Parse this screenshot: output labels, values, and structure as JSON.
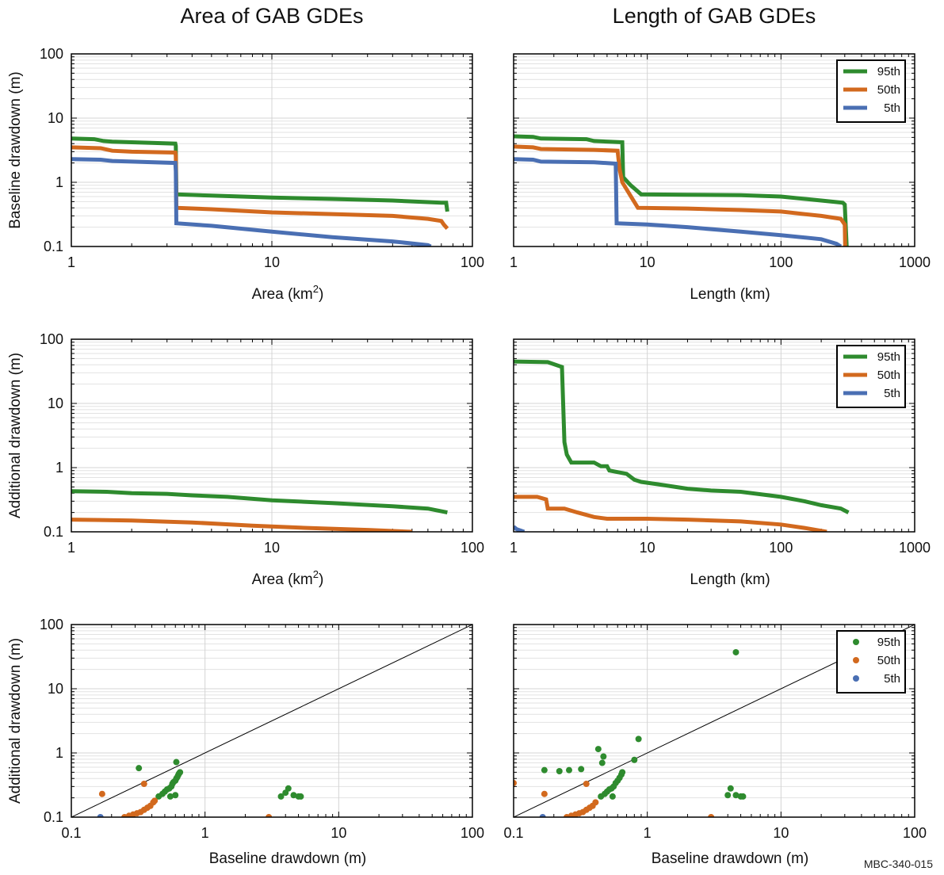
{
  "figure": {
    "column_titles": [
      "Area of GAB GDEs",
      "Length of GAB GDEs"
    ],
    "figure_code": "MBC-340-015"
  },
  "colors": {
    "p95": "#2e8b2e",
    "p50": "#d2691e",
    "p5": "#4a6fb3"
  },
  "chart_data": [
    {
      "type": "line",
      "row": 0,
      "col": 0,
      "xlabel": "Area (km²)",
      "ylabel": "Baseline drawdown (m)",
      "xscale": "log",
      "yscale": "log",
      "xlim": [
        1,
        100
      ],
      "ylim": [
        0.1,
        100
      ],
      "xticks": [
        "1",
        "10",
        "100"
      ],
      "yticks": [
        "0.1",
        "1",
        "10",
        "100"
      ],
      "grid": true,
      "legend": null,
      "series": [
        {
          "color_key": "p95",
          "points": [
            [
              1,
              4.8
            ],
            [
              1.3,
              4.7
            ],
            [
              1.45,
              4.4
            ],
            [
              1.6,
              4.3
            ],
            [
              2,
              4.2
            ],
            [
              2.6,
              4.1
            ],
            [
              3.3,
              4.0
            ],
            [
              3.32,
              3.7
            ],
            [
              3.34,
              0.65
            ],
            [
              5,
              0.62
            ],
            [
              10,
              0.58
            ],
            [
              20,
              0.55
            ],
            [
              40,
              0.52
            ],
            [
              70,
              0.48
            ],
            [
              74,
              0.48
            ],
            [
              75,
              0.35
            ]
          ]
        },
        {
          "color_key": "p50",
          "points": [
            [
              1,
              3.5
            ],
            [
              1.4,
              3.4
            ],
            [
              1.6,
              3.1
            ],
            [
              2,
              3.0
            ],
            [
              3.3,
              2.9
            ],
            [
              3.32,
              2.6
            ],
            [
              3.34,
              0.4
            ],
            [
              5,
              0.38
            ],
            [
              10,
              0.34
            ],
            [
              20,
              0.32
            ],
            [
              40,
              0.3
            ],
            [
              60,
              0.27
            ],
            [
              70,
              0.25
            ],
            [
              72,
              0.22
            ],
            [
              75,
              0.19
            ]
          ]
        },
        {
          "color_key": "p5",
          "points": [
            [
              1,
              2.3
            ],
            [
              1.4,
              2.25
            ],
            [
              1.6,
              2.15
            ],
            [
              2,
              2.1
            ],
            [
              3.3,
              2.0
            ],
            [
              3.32,
              1.5
            ],
            [
              3.34,
              0.23
            ],
            [
              5,
              0.21
            ],
            [
              10,
              0.17
            ],
            [
              20,
              0.14
            ],
            [
              40,
              0.12
            ],
            [
              60,
              0.105
            ],
            [
              62,
              0.1
            ]
          ]
        }
      ]
    },
    {
      "type": "line",
      "row": 0,
      "col": 1,
      "xlabel": "Length (km)",
      "ylabel": "",
      "xscale": "log",
      "yscale": "log",
      "xlim": [
        1,
        1000
      ],
      "ylim": [
        0.1,
        100
      ],
      "xticks": [
        "1",
        "10",
        "100",
        "1000"
      ],
      "yticks": [],
      "grid": true,
      "legend": "top-right",
      "series": [
        {
          "name": "95th",
          "color_key": "p95",
          "points": [
            [
              1,
              5.2
            ],
            [
              1.4,
              5.1
            ],
            [
              1.6,
              4.8
            ],
            [
              3.5,
              4.7
            ],
            [
              4,
              4.4
            ],
            [
              6.5,
              4.2
            ],
            [
              6.6,
              1.2
            ],
            [
              7.5,
              0.9
            ],
            [
              9,
              0.65
            ],
            [
              20,
              0.64
            ],
            [
              50,
              0.63
            ],
            [
              100,
              0.6
            ],
            [
              200,
              0.52
            ],
            [
              290,
              0.48
            ],
            [
              300,
              0.45
            ],
            [
              310,
              0.1
            ]
          ]
        },
        {
          "name": "50th",
          "color_key": "p50",
          "points": [
            [
              1,
              3.6
            ],
            [
              1.4,
              3.5
            ],
            [
              1.6,
              3.3
            ],
            [
              4,
              3.2
            ],
            [
              6,
              3.1
            ],
            [
              6.2,
              1.6
            ],
            [
              6.5,
              1.0
            ],
            [
              8.5,
              0.4
            ],
            [
              20,
              0.39
            ],
            [
              50,
              0.37
            ],
            [
              100,
              0.35
            ],
            [
              200,
              0.3
            ],
            [
              280,
              0.27
            ],
            [
              300,
              0.22
            ],
            [
              302,
              0.1
            ]
          ]
        },
        {
          "name": "5th",
          "color_key": "p5",
          "points": [
            [
              1,
              2.3
            ],
            [
              1.4,
              2.25
            ],
            [
              1.6,
              2.1
            ],
            [
              4,
              2.05
            ],
            [
              5.8,
              1.95
            ],
            [
              5.9,
              0.23
            ],
            [
              10,
              0.22
            ],
            [
              20,
              0.2
            ],
            [
              50,
              0.17
            ],
            [
              100,
              0.15
            ],
            [
              200,
              0.13
            ],
            [
              260,
              0.11
            ],
            [
              280,
              0.1
            ]
          ]
        }
      ]
    },
    {
      "type": "line",
      "row": 1,
      "col": 0,
      "xlabel": "Area (km²)",
      "ylabel": "Additional drawdown (m)",
      "xscale": "log",
      "yscale": "log",
      "xlim": [
        1,
        100
      ],
      "ylim": [
        0.1,
        100
      ],
      "xticks": [
        "1",
        "10",
        "100"
      ],
      "yticks": [
        "0.1",
        "1",
        "10",
        "100"
      ],
      "grid": true,
      "legend": null,
      "series": [
        {
          "color_key": "p95",
          "points": [
            [
              1,
              0.43
            ],
            [
              1.5,
              0.42
            ],
            [
              2,
              0.4
            ],
            [
              3,
              0.39
            ],
            [
              4,
              0.37
            ],
            [
              6,
              0.35
            ],
            [
              10,
              0.31
            ],
            [
              20,
              0.28
            ],
            [
              40,
              0.25
            ],
            [
              60,
              0.23
            ],
            [
              75,
              0.2
            ]
          ]
        },
        {
          "color_key": "p50",
          "points": [
            [
              1,
              0.155
            ],
            [
              2,
              0.15
            ],
            [
              4,
              0.14
            ],
            [
              8,
              0.125
            ],
            [
              15,
              0.115
            ],
            [
              30,
              0.107
            ],
            [
              50,
              0.1
            ]
          ]
        }
      ]
    },
    {
      "type": "line",
      "row": 1,
      "col": 1,
      "xlabel": "Length (km)",
      "ylabel": "",
      "xscale": "log",
      "yscale": "log",
      "xlim": [
        1,
        1000
      ],
      "ylim": [
        0.1,
        100
      ],
      "xticks": [
        "1",
        "10",
        "100",
        "1000"
      ],
      "yticks": [],
      "grid": true,
      "legend": "top-right",
      "series": [
        {
          "name": "95th",
          "color_key": "p95",
          "points": [
            [
              1,
              45
            ],
            [
              1.8,
              44
            ],
            [
              2.3,
              37
            ],
            [
              2.4,
              2.5
            ],
            [
              2.5,
              1.6
            ],
            [
              2.7,
              1.2
            ],
            [
              4,
              1.2
            ],
            [
              4.5,
              1.05
            ],
            [
              5,
              1.05
            ],
            [
              5.2,
              0.9
            ],
            [
              6,
              0.85
            ],
            [
              7,
              0.8
            ],
            [
              8,
              0.65
            ],
            [
              9,
              0.6
            ],
            [
              12,
              0.55
            ],
            [
              20,
              0.47
            ],
            [
              30,
              0.44
            ],
            [
              50,
              0.42
            ],
            [
              100,
              0.35
            ],
            [
              150,
              0.3
            ],
            [
              200,
              0.26
            ],
            [
              280,
              0.23
            ],
            [
              320,
              0.2
            ]
          ]
        },
        {
          "name": "50th",
          "color_key": "p50",
          "points": [
            [
              1,
              0.35
            ],
            [
              1.5,
              0.35
            ],
            [
              1.75,
              0.32
            ],
            [
              1.8,
              0.23
            ],
            [
              2.4,
              0.23
            ],
            [
              3,
              0.2
            ],
            [
              4,
              0.17
            ],
            [
              5,
              0.16
            ],
            [
              10,
              0.16
            ],
            [
              20,
              0.155
            ],
            [
              50,
              0.145
            ],
            [
              100,
              0.13
            ],
            [
              150,
              0.115
            ],
            [
              220,
              0.1
            ]
          ]
        },
        {
          "name": "5th",
          "color_key": "p5",
          "points": [
            [
              1,
              0.12
            ],
            [
              1.05,
              0.11
            ],
            [
              1.2,
              0.1
            ]
          ]
        }
      ]
    },
    {
      "type": "scatter",
      "row": 2,
      "col": 0,
      "xlabel": "Baseline drawdown (m)",
      "ylabel": "Additional drawdown (m)",
      "xscale": "log",
      "yscale": "log",
      "xlim": [
        0.1,
        100
      ],
      "ylim": [
        0.1,
        100
      ],
      "xticks": [
        "0.1",
        "1",
        "10",
        "100"
      ],
      "yticks": [
        "0.1",
        "1",
        "10",
        "100"
      ],
      "grid": true,
      "legend": null,
      "one_to_one_line": true,
      "series": [
        {
          "color_key": "p95",
          "points": [
            [
              0.32,
              0.58
            ],
            [
              0.61,
              0.72
            ],
            [
              0.45,
              0.21
            ],
            [
              0.48,
              0.23
            ],
            [
              0.5,
              0.25
            ],
            [
              0.52,
              0.27
            ],
            [
              0.54,
              0.28
            ],
            [
              0.56,
              0.3
            ],
            [
              0.57,
              0.33
            ],
            [
              0.58,
              0.35
            ],
            [
              0.6,
              0.37
            ],
            [
              0.61,
              0.4
            ],
            [
              0.62,
              0.42
            ],
            [
              0.63,
              0.45
            ],
            [
              0.64,
              0.48
            ],
            [
              0.55,
              0.21
            ],
            [
              0.6,
              0.22
            ],
            [
              0.65,
              0.5
            ],
            [
              4.2,
              0.28
            ],
            [
              3.7,
              0.21
            ],
            [
              4.0,
              0.24
            ],
            [
              4.6,
              0.22
            ],
            [
              5.0,
              0.21
            ],
            [
              5.2,
              0.21
            ]
          ]
        },
        {
          "color_key": "p50",
          "points": [
            [
              0.17,
              0.23
            ],
            [
              0.35,
              0.33
            ],
            [
              0.25,
              0.1
            ],
            [
              0.27,
              0.105
            ],
            [
              0.29,
              0.11
            ],
            [
              0.31,
              0.115
            ],
            [
              0.33,
              0.12
            ],
            [
              0.35,
              0.13
            ],
            [
              0.37,
              0.14
            ],
            [
              0.39,
              0.15
            ],
            [
              0.41,
              0.17
            ],
            [
              0.42,
              0.18
            ],
            [
              3.0,
              0.1
            ]
          ]
        },
        {
          "color_key": "p5",
          "points": [
            [
              0.165,
              0.1
            ]
          ]
        }
      ]
    },
    {
      "type": "scatter",
      "row": 2,
      "col": 1,
      "xlabel": "Baseline drawdown (m)",
      "ylabel": "",
      "xscale": "log",
      "yscale": "log",
      "xlim": [
        0.1,
        100
      ],
      "ylim": [
        0.1,
        100
      ],
      "xticks": [
        "0.1",
        "1",
        "10",
        "100"
      ],
      "yticks": [],
      "grid": true,
      "legend": "top-right",
      "one_to_one_line": true,
      "series": [
        {
          "name": "95th",
          "color_key": "p95",
          "points": [
            [
              0.17,
              0.54
            ],
            [
              0.22,
              0.52
            ],
            [
              0.26,
              0.54
            ],
            [
              0.32,
              0.56
            ],
            [
              0.43,
              1.15
            ],
            [
              0.47,
              0.88
            ],
            [
              0.46,
              0.7
            ],
            [
              0.86,
              1.65
            ],
            [
              0.8,
              0.78
            ],
            [
              0.45,
              0.21
            ],
            [
              0.48,
              0.23
            ],
            [
              0.5,
              0.25
            ],
            [
              0.52,
              0.27
            ],
            [
              0.54,
              0.28
            ],
            [
              0.56,
              0.3
            ],
            [
              0.58,
              0.34
            ],
            [
              0.6,
              0.37
            ],
            [
              0.62,
              0.41
            ],
            [
              0.64,
              0.46
            ],
            [
              0.65,
              0.5
            ],
            [
              0.55,
              0.21
            ],
            [
              4.2,
              0.28
            ],
            [
              4.0,
              0.22
            ],
            [
              4.6,
              0.22
            ],
            [
              5.0,
              0.21
            ],
            [
              5.2,
              0.21
            ],
            [
              4.6,
              37
            ]
          ]
        },
        {
          "name": "50th",
          "color_key": "p50",
          "points": [
            [
              0.1,
              0.34
            ],
            [
              0.17,
              0.23
            ],
            [
              0.35,
              0.33
            ],
            [
              0.25,
              0.1
            ],
            [
              0.27,
              0.105
            ],
            [
              0.29,
              0.11
            ],
            [
              0.31,
              0.115
            ],
            [
              0.33,
              0.12
            ],
            [
              0.35,
              0.13
            ],
            [
              0.37,
              0.14
            ],
            [
              0.39,
              0.15
            ],
            [
              0.41,
              0.17
            ],
            [
              3.0,
              0.1
            ]
          ]
        },
        {
          "name": "5th",
          "color_key": "p5",
          "points": [
            [
              0.165,
              0.1
            ]
          ]
        }
      ]
    }
  ]
}
